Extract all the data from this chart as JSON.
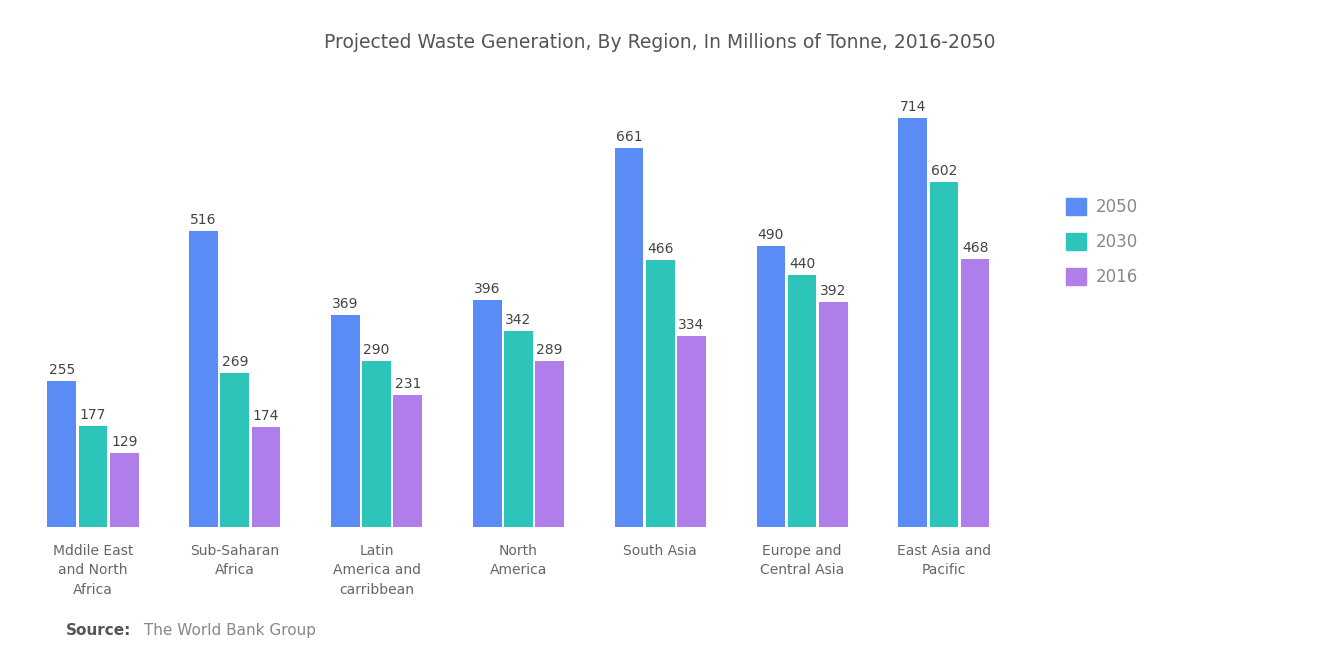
{
  "title": "Projected Waste Generation, By Region, In Millions of Tonne, 2016-2050",
  "categories": [
    "Mddile East\nand North\nAfrica",
    "Sub-Saharan\nAfrica",
    "Latin\nAmerica and\ncarribbean",
    "North\nAmerica",
    "South Asia",
    "Europe and\nCentral Asia",
    "East Asia and\nPacific"
  ],
  "series": {
    "2050": [
      255,
      516,
      369,
      396,
      661,
      490,
      714
    ],
    "2030": [
      177,
      269,
      290,
      342,
      466,
      440,
      602
    ],
    "2016": [
      129,
      174,
      231,
      289,
      334,
      392,
      468
    ]
  },
  "colors": {
    "2050": "#5B8BF5",
    "2030": "#2DC5BA",
    "2016": "#B07EEB"
  },
  "legend_labels": [
    "2050",
    "2030",
    "2016"
  ],
  "ylim": [
    0,
    800
  ],
  "bar_width": 0.22,
  "background_color": "#FFFFFF",
  "title_fontsize": 13.5,
  "tick_fontsize": 10,
  "value_fontsize": 10,
  "value_color": "#444444",
  "xlabel_color": "#666666",
  "legend_fontsize": 12,
  "legend_color": "#888888"
}
